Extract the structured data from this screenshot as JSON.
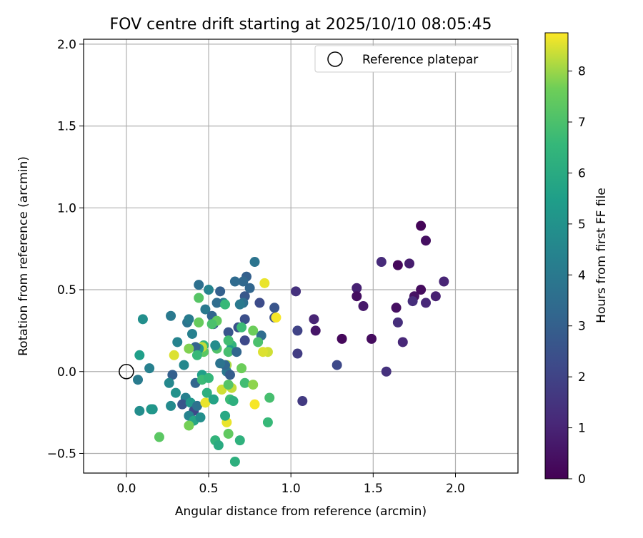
{
  "chart_data": {
    "type": "scatter",
    "title": "FOV centre drift starting at 2025/10/10 08:05:45",
    "xlabel": "Angular distance from reference (arcmin)",
    "ylabel": "Rotation from reference (arcmin)",
    "xlim": [
      -0.26,
      2.38
    ],
    "ylim": [
      -0.62,
      2.03
    ],
    "x_ticks": [
      0.0,
      0.5,
      1.0,
      1.5,
      2.0
    ],
    "x_tick_labels": [
      "0.0",
      "0.5",
      "1.0",
      "1.5",
      "2.0"
    ],
    "y_ticks": [
      -0.5,
      0.0,
      0.5,
      1.0,
      1.5,
      2.0
    ],
    "y_tick_labels": [
      "−0.5",
      "0.0",
      "0.5",
      "1.0",
      "1.5",
      "2.0"
    ],
    "grid": true,
    "legend": {
      "position": "top-right",
      "entries": [
        {
          "label": "Reference platepar",
          "marker": "hollow-circle"
        }
      ]
    },
    "reference_point": {
      "x": 0.0,
      "y": 0.0
    },
    "colorbar": {
      "label": "Hours from first FF file",
      "colormap": "viridis",
      "range": [
        0,
        8.75
      ],
      "ticks": [
        0,
        1,
        2,
        3,
        4,
        5,
        6,
        7,
        8
      ],
      "tick_labels": [
        "0",
        "1",
        "2",
        "3",
        "4",
        "5",
        "6",
        "7",
        "8"
      ]
    },
    "points": [
      {
        "x": 1.79,
        "y": 0.89,
        "c": 0.1
      },
      {
        "x": 1.82,
        "y": 0.8,
        "c": 0.4
      },
      {
        "x": 1.65,
        "y": 0.65,
        "c": 0.2
      },
      {
        "x": 1.72,
        "y": 0.66,
        "c": 0.8
      },
      {
        "x": 1.55,
        "y": 0.67,
        "c": 1.2
      },
      {
        "x": 1.93,
        "y": 0.55,
        "c": 1.0
      },
      {
        "x": 1.79,
        "y": 0.5,
        "c": 0.3
      },
      {
        "x": 1.75,
        "y": 0.46,
        "c": 0.5
      },
      {
        "x": 1.74,
        "y": 0.43,
        "c": 1.3
      },
      {
        "x": 1.88,
        "y": 0.46,
        "c": 0.9
      },
      {
        "x": 1.82,
        "y": 0.42,
        "c": 1.1
      },
      {
        "x": 1.64,
        "y": 0.39,
        "c": 0.4
      },
      {
        "x": 1.65,
        "y": 0.3,
        "c": 1.3
      },
      {
        "x": 1.68,
        "y": 0.18,
        "c": 1.1
      },
      {
        "x": 1.58,
        "y": 0.0,
        "c": 1.4
      },
      {
        "x": 1.4,
        "y": 0.51,
        "c": 0.9
      },
      {
        "x": 1.4,
        "y": 0.46,
        "c": 0.4
      },
      {
        "x": 1.44,
        "y": 0.4,
        "c": 0.7
      },
      {
        "x": 1.49,
        "y": 0.2,
        "c": 0.3
      },
      {
        "x": 1.31,
        "y": 0.2,
        "c": 0.2
      },
      {
        "x": 1.28,
        "y": 0.04,
        "c": 2.2
      },
      {
        "x": 1.14,
        "y": 0.32,
        "c": 1.0
      },
      {
        "x": 1.15,
        "y": 0.25,
        "c": 0.6
      },
      {
        "x": 1.03,
        "y": 0.49,
        "c": 1.4
      },
      {
        "x": 1.04,
        "y": 0.25,
        "c": 2.0
      },
      {
        "x": 1.04,
        "y": 0.11,
        "c": 1.8
      },
      {
        "x": 1.07,
        "y": -0.18,
        "c": 1.7
      },
      {
        "x": 0.9,
        "y": 0.39,
        "c": 2.6
      },
      {
        "x": 0.9,
        "y": 0.33,
        "c": 2.4
      },
      {
        "x": 0.91,
        "y": 0.33,
        "c": 8.7
      },
      {
        "x": 0.82,
        "y": 0.22,
        "c": 3.5
      },
      {
        "x": 0.81,
        "y": 0.42,
        "c": 2.3
      },
      {
        "x": 0.78,
        "y": 0.67,
        "c": 3.8
      },
      {
        "x": 0.73,
        "y": 0.58,
        "c": 3.0
      },
      {
        "x": 0.71,
        "y": 0.55,
        "c": 3.3
      },
      {
        "x": 0.75,
        "y": 0.51,
        "c": 3.2
      },
      {
        "x": 0.72,
        "y": 0.46,
        "c": 2.7
      },
      {
        "x": 0.71,
        "y": 0.42,
        "c": 3.6
      },
      {
        "x": 0.69,
        "y": 0.41,
        "c": 4.0
      },
      {
        "x": 0.72,
        "y": 0.32,
        "c": 2.4
      },
      {
        "x": 0.68,
        "y": 0.27,
        "c": 2.5
      },
      {
        "x": 0.72,
        "y": 0.19,
        "c": 2.2
      },
      {
        "x": 0.62,
        "y": 0.24,
        "c": 2.6
      },
      {
        "x": 0.66,
        "y": 0.55,
        "c": 3.4
      },
      {
        "x": 0.57,
        "y": 0.49,
        "c": 3.0
      },
      {
        "x": 0.59,
        "y": 0.42,
        "c": 4.2
      },
      {
        "x": 0.55,
        "y": 0.42,
        "c": 3.5
      },
      {
        "x": 0.5,
        "y": 0.5,
        "c": 4.4
      },
      {
        "x": 0.44,
        "y": 0.53,
        "c": 3.6
      },
      {
        "x": 0.48,
        "y": 0.38,
        "c": 4.0
      },
      {
        "x": 0.52,
        "y": 0.34,
        "c": 3.2
      },
      {
        "x": 0.53,
        "y": 0.29,
        "c": 2.8
      },
      {
        "x": 0.44,
        "y": 0.45,
        "c": 7.2
      },
      {
        "x": 0.6,
        "y": 0.41,
        "c": 6.6
      },
      {
        "x": 0.84,
        "y": 0.54,
        "c": 8.6
      },
      {
        "x": 0.86,
        "y": 0.12,
        "c": 8.4
      },
      {
        "x": 0.83,
        "y": 0.12,
        "c": 8.5
      },
      {
        "x": 0.77,
        "y": 0.25,
        "c": 7.6
      },
      {
        "x": 0.7,
        "y": 0.27,
        "c": 6.7
      },
      {
        "x": 0.64,
        "y": 0.16,
        "c": 6.4
      },
      {
        "x": 0.63,
        "y": 0.13,
        "c": 5.4
      },
      {
        "x": 0.62,
        "y": 0.12,
        "c": 6.9
      },
      {
        "x": 0.61,
        "y": 0.04,
        "c": 8.1
      },
      {
        "x": 0.61,
        "y": 0.0,
        "c": 3.9
      },
      {
        "x": 0.63,
        "y": -0.02,
        "c": 2.9
      },
      {
        "x": 0.6,
        "y": 0.04,
        "c": 3.3
      },
      {
        "x": 0.57,
        "y": 0.05,
        "c": 3.8
      },
      {
        "x": 0.55,
        "y": 0.14,
        "c": 7.1
      },
      {
        "x": 0.54,
        "y": 0.16,
        "c": 4.8
      },
      {
        "x": 0.55,
        "y": 0.31,
        "c": 7.4
      },
      {
        "x": 0.52,
        "y": 0.29,
        "c": 7.0
      },
      {
        "x": 0.47,
        "y": 0.16,
        "c": 6.5
      },
      {
        "x": 0.47,
        "y": 0.12,
        "c": 7.3
      },
      {
        "x": 0.46,
        "y": 0.15,
        "c": 8.3
      },
      {
        "x": 0.44,
        "y": 0.14,
        "c": 5.2
      },
      {
        "x": 0.42,
        "y": 0.15,
        "c": 3.1
      },
      {
        "x": 0.44,
        "y": 0.3,
        "c": 7.5
      },
      {
        "x": 0.37,
        "y": 0.3,
        "c": 3.8
      },
      {
        "x": 0.38,
        "y": 0.32,
        "c": 4.1
      },
      {
        "x": 0.27,
        "y": 0.34,
        "c": 4.0
      },
      {
        "x": 0.31,
        "y": 0.18,
        "c": 4.4
      },
      {
        "x": 0.38,
        "y": 0.14,
        "c": 7.8
      },
      {
        "x": 0.29,
        "y": 0.1,
        "c": 8.5
      },
      {
        "x": 0.35,
        "y": 0.04,
        "c": 4.6
      },
      {
        "x": 0.28,
        "y": -0.02,
        "c": 3.0
      },
      {
        "x": 0.26,
        "y": -0.07,
        "c": 4.6
      },
      {
        "x": 0.3,
        "y": -0.13,
        "c": 5.0
      },
      {
        "x": 0.27,
        "y": -0.21,
        "c": 4.7
      },
      {
        "x": 0.36,
        "y": -0.16,
        "c": 4.3
      },
      {
        "x": 0.34,
        "y": -0.2,
        "c": 2.6
      },
      {
        "x": 0.39,
        "y": -0.19,
        "c": 5.2
      },
      {
        "x": 0.41,
        "y": -0.24,
        "c": 2.2
      },
      {
        "x": 0.38,
        "y": -0.27,
        "c": 4.4
      },
      {
        "x": 0.41,
        "y": -0.3,
        "c": 5.8
      },
      {
        "x": 0.38,
        "y": -0.33,
        "c": 7.7
      },
      {
        "x": 0.45,
        "y": -0.28,
        "c": 4.9
      },
      {
        "x": 0.43,
        "y": -0.21,
        "c": 3.7
      },
      {
        "x": 0.42,
        "y": -0.07,
        "c": 3.2
      },
      {
        "x": 0.46,
        "y": -0.02,
        "c": 5.5
      },
      {
        "x": 0.46,
        "y": -0.05,
        "c": 6.7
      },
      {
        "x": 0.5,
        "y": -0.04,
        "c": 6.5
      },
      {
        "x": 0.49,
        "y": -0.13,
        "c": 6.2
      },
      {
        "x": 0.48,
        "y": -0.19,
        "c": 8.6
      },
      {
        "x": 0.53,
        "y": -0.17,
        "c": 5.7
      },
      {
        "x": 0.54,
        "y": -0.42,
        "c": 6.4
      },
      {
        "x": 0.56,
        "y": -0.45,
        "c": 6.0
      },
      {
        "x": 0.62,
        "y": -0.38,
        "c": 7.4
      },
      {
        "x": 0.61,
        "y": -0.31,
        "c": 8.6
      },
      {
        "x": 0.6,
        "y": -0.27,
        "c": 5.9
      },
      {
        "x": 0.63,
        "y": -0.17,
        "c": 6.7
      },
      {
        "x": 0.65,
        "y": -0.18,
        "c": 6.2
      },
      {
        "x": 0.58,
        "y": -0.11,
        "c": 8.4
      },
      {
        "x": 0.64,
        "y": -0.1,
        "c": 8.3
      },
      {
        "x": 0.62,
        "y": -0.08,
        "c": 7.2
      },
      {
        "x": 0.72,
        "y": -0.07,
        "c": 6.8
      },
      {
        "x": 0.7,
        "y": 0.02,
        "c": 7.6
      },
      {
        "x": 0.77,
        "y": -0.08,
        "c": 7.9
      },
      {
        "x": 0.78,
        "y": -0.2,
        "c": 8.7
      },
      {
        "x": 0.87,
        "y": -0.16,
        "c": 6.9
      },
      {
        "x": 0.86,
        "y": -0.31,
        "c": 6.6
      },
      {
        "x": 0.69,
        "y": -0.42,
        "c": 6.3
      },
      {
        "x": 0.66,
        "y": -0.55,
        "c": 6.2
      },
      {
        "x": 0.2,
        "y": -0.4,
        "c": 7.3
      },
      {
        "x": 0.16,
        "y": -0.23,
        "c": 5.0
      },
      {
        "x": 0.15,
        "y": -0.23,
        "c": 5.2
      },
      {
        "x": 0.08,
        "y": -0.24,
        "c": 4.8
      },
      {
        "x": 0.07,
        "y": -0.05,
        "c": 4.1
      },
      {
        "x": 0.14,
        "y": 0.02,
        "c": 4.3
      },
      {
        "x": 0.08,
        "y": 0.1,
        "c": 5.5
      },
      {
        "x": 0.1,
        "y": 0.32,
        "c": 4.9
      },
      {
        "x": 0.4,
        "y": 0.23,
        "c": 4.3
      },
      {
        "x": 0.43,
        "y": 0.1,
        "c": 6.6
      },
      {
        "x": 0.62,
        "y": 0.19,
        "c": 6.8
      },
      {
        "x": 0.67,
        "y": 0.12,
        "c": 3.2
      },
      {
        "x": 0.8,
        "y": 0.18,
        "c": 7.0
      }
    ]
  }
}
